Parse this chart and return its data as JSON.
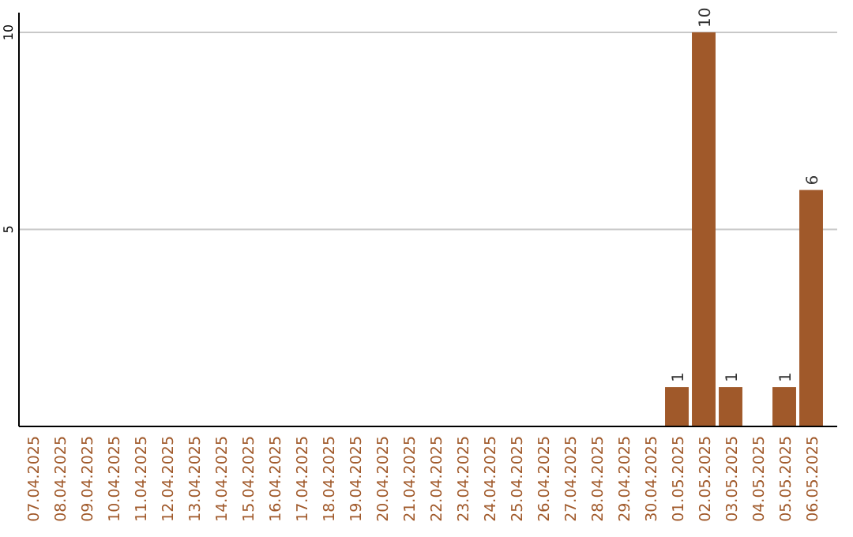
{
  "chart_data": {
    "type": "bar",
    "categories": [
      "07.04.2025",
      "08.04.2025",
      "09.04.2025",
      "10.04.2025",
      "11.04.2025",
      "12.04.2025",
      "13.04.2025",
      "14.04.2025",
      "15.04.2025",
      "16.04.2025",
      "17.04.2025",
      "18.04.2025",
      "19.04.2025",
      "20.04.2025",
      "21.04.2025",
      "22.04.2025",
      "23.04.2025",
      "24.04.2025",
      "25.04.2025",
      "26.04.2025",
      "27.04.2025",
      "28.04.2025",
      "29.04.2025",
      "30.04.2025",
      "01.05.2025",
      "02.05.2025",
      "03.05.2025",
      "04.05.2025",
      "05.05.2025",
      "06.05.2025"
    ],
    "values": [
      0,
      0,
      0,
      0,
      0,
      0,
      0,
      0,
      0,
      0,
      0,
      0,
      0,
      0,
      0,
      0,
      0,
      0,
      0,
      0,
      0,
      0,
      0,
      0,
      1,
      10,
      1,
      0,
      1,
      6
    ],
    "value_labels": [
      null,
      null,
      null,
      null,
      null,
      null,
      null,
      null,
      null,
      null,
      null,
      null,
      null,
      null,
      null,
      null,
      null,
      null,
      null,
      null,
      null,
      null,
      null,
      null,
      "1",
      "10",
      "1",
      null,
      "1",
      "6"
    ],
    "color": "#a0592a",
    "ylim": [
      0,
      10.5
    ],
    "yticks": [
      5,
      10
    ],
    "grid": "y"
  }
}
